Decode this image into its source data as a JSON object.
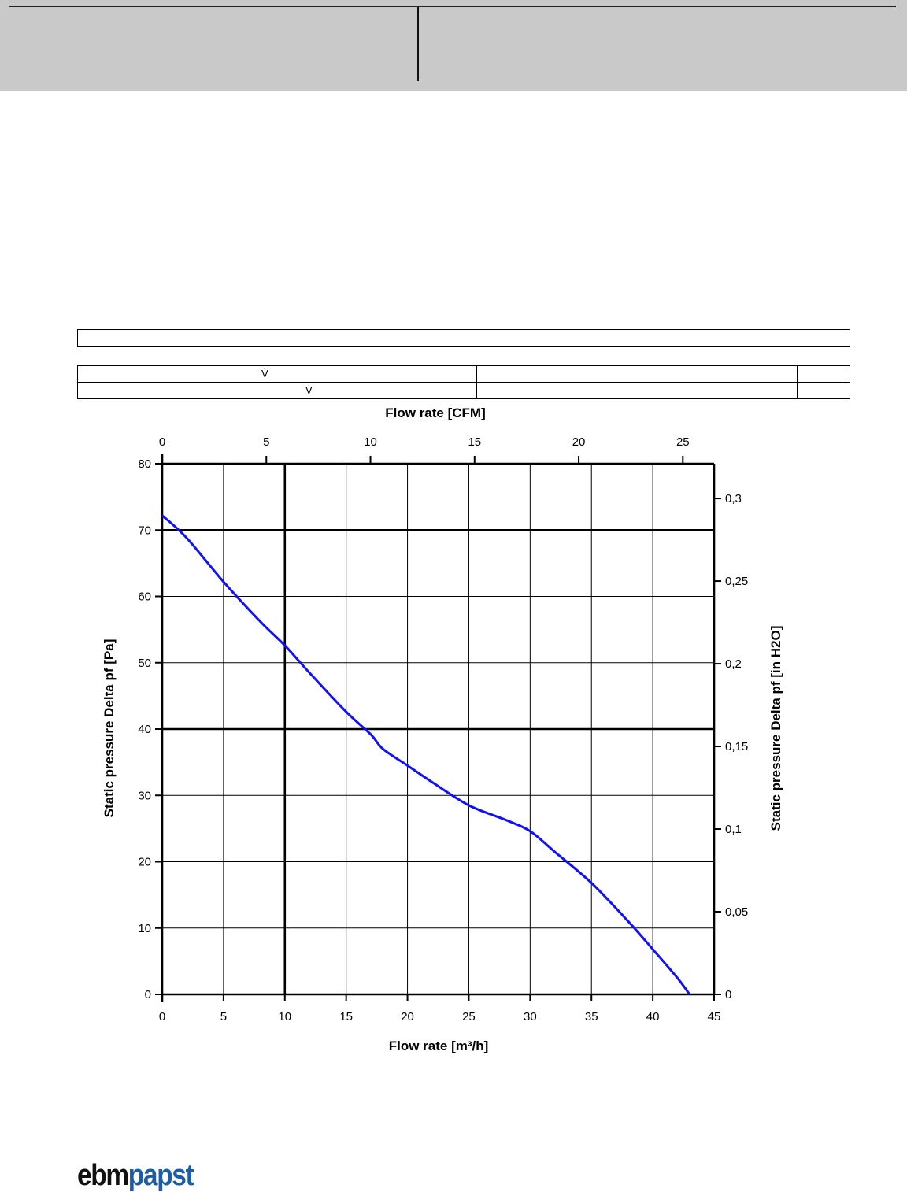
{
  "header": {},
  "table": {
    "row1_symbol": "V̇",
    "row2_symbol": "V̇"
  },
  "chart_data": {
    "type": "line",
    "xlabel": "Flow rate [m³/h]",
    "x2label": "Flow rate [CFM]",
    "ylabel": "Static pressure Delta pf [Pa]",
    "y2label": "Static pressure Delta pf [in H2O]",
    "xlim": [
      0,
      45
    ],
    "ylim": [
      0,
      80
    ],
    "x2lim": [
      0,
      26.5
    ],
    "y2lim": [
      0,
      0.321
    ],
    "grid": true,
    "x_ticks": [
      "0",
      "5",
      "10",
      "15",
      "20",
      "25",
      "30",
      "35",
      "40",
      "45"
    ],
    "y_ticks": [
      "0",
      "10",
      "20",
      "30",
      "40",
      "50",
      "60",
      "70",
      "80"
    ],
    "x2_ticks": [
      "0",
      "5",
      "10",
      "15",
      "20",
      "25"
    ],
    "y2_ticks": [
      "0",
      "0,05",
      "0,1",
      "0,15",
      "0,2",
      "0,25",
      "0,3"
    ],
    "line_color": "#1010ff",
    "series": [
      {
        "x": [
          0,
          2,
          5,
          8,
          10,
          12,
          15,
          17,
          18,
          20,
          22,
          25,
          28,
          30,
          32,
          35,
          38,
          40,
          42,
          43
        ],
        "y": [
          72.2,
          68.8,
          62.2,
          56.2,
          52.6,
          48.5,
          42.6,
          39.2,
          37.0,
          34.5,
          32.0,
          28.5,
          26.3,
          24.6,
          21.5,
          16.8,
          11.0,
          6.8,
          2.5,
          0
        ]
      }
    ]
  },
  "logo": {
    "part1": "ebm",
    "part2": "papst"
  }
}
